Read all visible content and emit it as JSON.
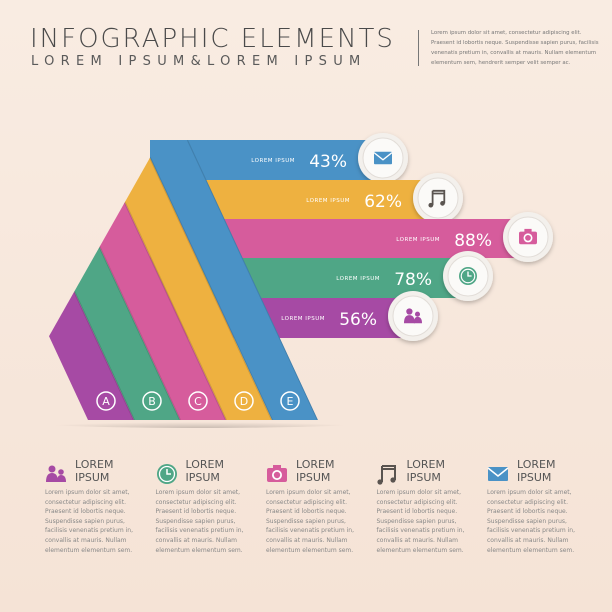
{
  "header": {
    "title": "INFOGRAPHIC ELEMENTS",
    "subtitle": "LOREM IPSUM&LOREM IPSUM",
    "intro": "Lorem ipsum dolor sit amet, consectetur adipiscing elit. Praesent id lobortis neque. Suspendisse sapien purus, facilisis venenatis pretium in, convallis at mauris. Nullam elementum elementum sem, hendrerit semper velit semper ac."
  },
  "bars": [
    {
      "label": "LOREM IPSUM",
      "value": "43%",
      "icon": "mail-icon",
      "color": "#4a92c6"
    },
    {
      "label": "LOREM IPSUM",
      "value": "62%",
      "icon": "music-icon",
      "color": "#eeb140"
    },
    {
      "label": "LOREM IPSUM",
      "value": "88%",
      "icon": "camera-icon",
      "color": "#d65c9c"
    },
    {
      "label": "LOREM IPSUM",
      "value": "78%",
      "icon": "clock-icon",
      "color": "#4fa686"
    },
    {
      "label": "LOREM IPSUM",
      "value": "56%",
      "icon": "people-icon",
      "color": "#a64aa4"
    }
  ],
  "stripe_letters": [
    "A",
    "B",
    "C",
    "D",
    "E"
  ],
  "columns": [
    {
      "heading": "LOREM\nIPSUM",
      "icon": "people-icon",
      "color": "#a64aa4",
      "text": "Lorem ipsum dolor sit amet, consectetur adipiscing elit. Praesent id lobortis neque. Suspendisse sapien purus, facilisis venenatis pretium in, convallis at mauris. Nullam elementum elementum sem."
    },
    {
      "heading": "LOREM\nIPSUM",
      "icon": "clock-icon",
      "color": "#4fa686",
      "text": "Lorem ipsum dolor sit amet, consectetur adipiscing elit. Praesent id lobortis neque. Suspendisse sapien purus, facilisis venenatis pretium in, convallis at mauris. Nullam elementum elementum sem."
    },
    {
      "heading": "LOREM\nIPSUM",
      "icon": "camera-icon",
      "color": "#d65c9c",
      "text": "Lorem ipsum dolor sit amet, consectetur adipiscing elit. Praesent id lobortis neque. Suspendisse sapien purus, facilisis venenatis pretium in, convallis at mauris. Nullam elementum elementum sem."
    },
    {
      "heading": "LOREM\nIPSUM",
      "icon": "music-icon",
      "color": "#5a5450",
      "text": "Lorem ipsum dolor sit amet, consectetur adipiscing elit. Praesent id lobortis neque. Suspendisse sapien purus, facilisis venenatis pretium in, convallis at mauris. Nullam elementum elementum sem."
    },
    {
      "heading": "LOREM\nIPSUM",
      "icon": "mail-icon",
      "color": "#4a92c6",
      "text": "Lorem ipsum dolor sit amet, consectetur adipiscing elit. Praesent id lobortis neque. Suspendisse sapien purus, facilisis venenatis pretium in, convallis at mauris. Nullam elementum elementum sem."
    }
  ]
}
